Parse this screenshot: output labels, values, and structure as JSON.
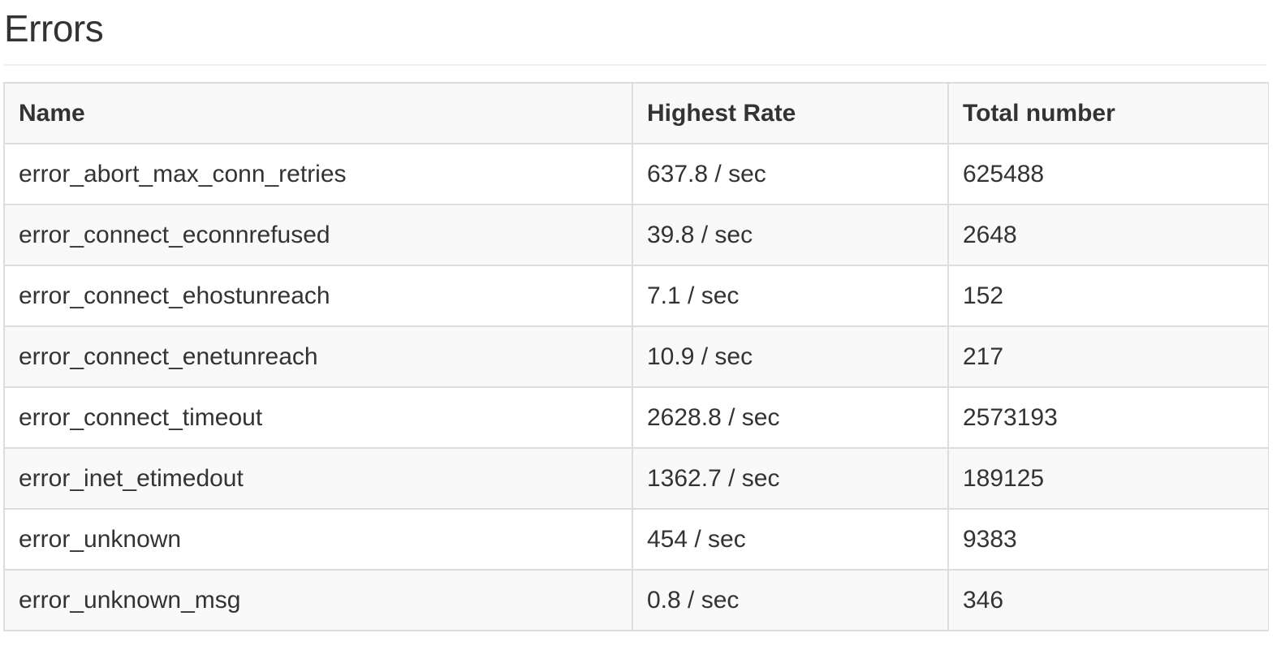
{
  "page": {
    "title": "Errors"
  },
  "table": {
    "headers": {
      "name": "Name",
      "rate": "Highest Rate",
      "total": "Total number"
    },
    "rows": [
      {
        "name": "error_abort_max_conn_retries",
        "rate": "637.8 / sec",
        "total": "625488"
      },
      {
        "name": "error_connect_econnrefused",
        "rate": "39.8 / sec",
        "total": "2648"
      },
      {
        "name": "error_connect_ehostunreach",
        "rate": "7.1 / sec",
        "total": "152"
      },
      {
        "name": "error_connect_enetunreach",
        "rate": "10.9 / sec",
        "total": "217"
      },
      {
        "name": "error_connect_timeout",
        "rate": "2628.8 / sec",
        "total": "2573193"
      },
      {
        "name": "error_inet_etimedout",
        "rate": "1362.7 / sec",
        "total": "189125"
      },
      {
        "name": "error_unknown",
        "rate": "454 / sec",
        "total": "9383"
      },
      {
        "name": "error_unknown_msg",
        "rate": "0.8 / sec",
        "total": "346"
      }
    ]
  }
}
